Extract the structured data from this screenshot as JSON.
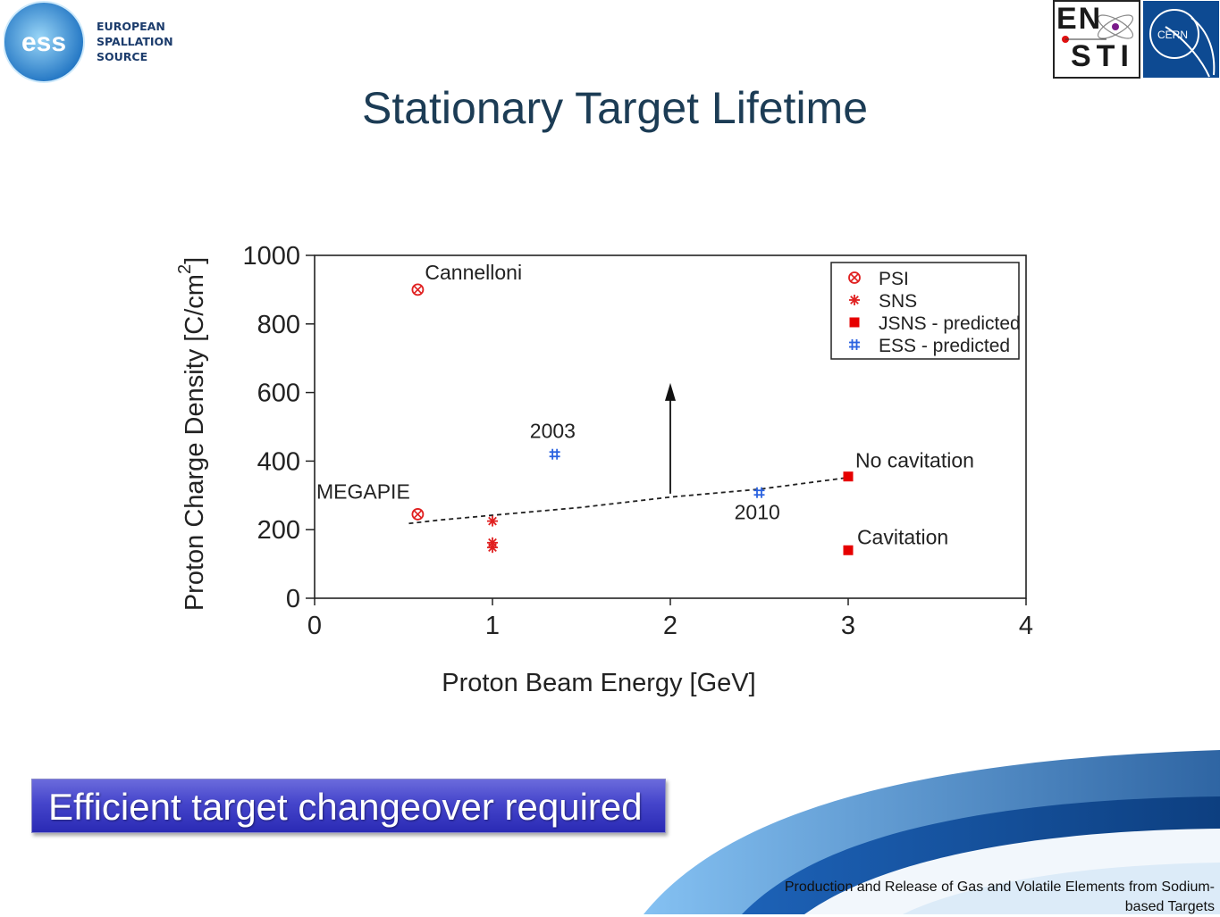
{
  "header": {
    "logo_lines": [
      "EUROPEAN",
      "SPALLATION",
      "SOURCE"
    ],
    "logo_mark": "ess",
    "en_sti": [
      "EN",
      "STI"
    ],
    "cern_logo": "CERN"
  },
  "title": "Stationary Target Lifetime",
  "chart_data": {
    "type": "scatter",
    "xlabel": "Proton Beam Energy [GeV]",
    "ylabel": "Proton Charge Density [C/cm",
    "ylabel_sup": "2",
    "ylabel_close": "]",
    "xlim": [
      0,
      4
    ],
    "ylim": [
      0,
      1000
    ],
    "xticks": [
      "0",
      "1",
      "2",
      "3",
      "4"
    ],
    "yticks": [
      "0",
      "200",
      "400",
      "600",
      "800",
      "1000"
    ],
    "grid": false,
    "legend_position": "top-right",
    "series": [
      {
        "name": "PSI",
        "marker": "circle-x",
        "color": "#e02020",
        "points": [
          [
            0.58,
            900
          ],
          [
            0.58,
            245
          ]
        ]
      },
      {
        "name": "SNS",
        "marker": "asterisk",
        "color": "#e02020",
        "points": [
          [
            1.0,
            225
          ],
          [
            1.0,
            162
          ],
          [
            1.0,
            148
          ]
        ]
      },
      {
        "name": "JSNS - predicted",
        "marker": "square",
        "color": "#e60000",
        "points": [
          [
            3.0,
            355
          ],
          [
            3.0,
            140
          ]
        ]
      },
      {
        "name": "ESS  - predicted",
        "marker": "hash",
        "color": "#2a62e0",
        "points": [
          [
            1.35,
            420
          ],
          [
            2.5,
            308
          ]
        ]
      }
    ],
    "trend_line": {
      "style": "dashed",
      "points": [
        [
          0.53,
          218
        ],
        [
          0.7,
          228
        ],
        [
          1.0,
          242
        ],
        [
          1.5,
          265
        ],
        [
          2.0,
          295
        ],
        [
          2.5,
          318
        ],
        [
          3.0,
          352
        ]
      ]
    },
    "arrow": {
      "x": 2.0,
      "y_from": 305,
      "y_to": 628
    },
    "annotations": [
      {
        "text": "Cannelloni",
        "x": 0.62,
        "y": 930
      },
      {
        "text": "MEGAPIE",
        "x": 0.01,
        "y": 290
      },
      {
        "text": "2003",
        "x": 1.21,
        "y": 468
      },
      {
        "text": "2010",
        "x": 2.36,
        "y": 230
      },
      {
        "text": "No cavitation",
        "x": 3.04,
        "y": 382
      },
      {
        "text": "Cavitation",
        "x": 3.05,
        "y": 158
      }
    ]
  },
  "callout": "Efficient target changeover required",
  "footer": {
    "line1": "Production and Release of Gas and Volatile Elements from Sodium-",
    "line2": "based Targets"
  },
  "colors": {
    "title": "#1c3c55",
    "swoosh_dark": "#0b4f9a",
    "swoosh_light": "#3d9be9",
    "callout": "#3a3ac4",
    "cern_blue": "#0d4a92"
  }
}
